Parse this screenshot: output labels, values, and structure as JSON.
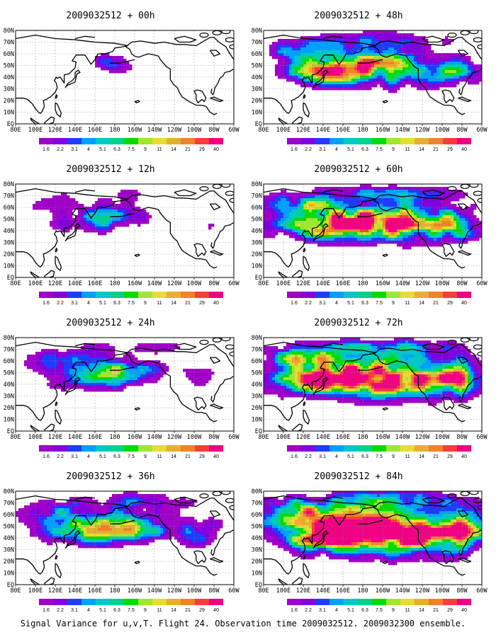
{
  "chart_data": {
    "type": "heatmap",
    "caption": "Signal Variance for u,v,T. Flight 24. Observation time 2009032512. 2009032300 ensemble.",
    "x_ticks": [
      "80E",
      "100E",
      "120E",
      "140E",
      "160E",
      "180",
      "160W",
      "140W",
      "120W",
      "100W",
      "80W",
      "60W"
    ],
    "y_ticks": [
      "EQ",
      "10N",
      "20N",
      "30N",
      "40N",
      "50N",
      "60N",
      "70N",
      "80N"
    ],
    "colorbar": {
      "levels": [
        "1.6",
        "2.2",
        "3.1",
        "4",
        "5.1",
        "6.3",
        "7.5",
        "9",
        "11",
        "14",
        "21",
        "29",
        "40"
      ],
      "colors": [
        "#a000c8",
        "#8200dc",
        "#1e3cff",
        "#00a0ff",
        "#00c8c8",
        "#00d28c",
        "#00dc00",
        "#a0e632",
        "#e6dc32",
        "#e6af2d",
        "#f08228",
        "#fa3c3c",
        "#f00082"
      ]
    },
    "panels": [
      {
        "title": "2009032512 + 00h",
        "lead_hours": 0
      },
      {
        "title": "2009032512 + 12h",
        "lead_hours": 12
      },
      {
        "title": "2009032512 + 24h",
        "lead_hours": 24
      },
      {
        "title": "2009032512 + 36h",
        "lead_hours": 36
      },
      {
        "title": "2009032512 + 48h",
        "lead_hours": 48
      },
      {
        "title": "2009032512 + 60h",
        "lead_hours": 60
      },
      {
        "title": "2009032512 + 72h",
        "lead_hours": 72
      },
      {
        "title": "2009032512 + 84h",
        "lead_hours": 84
      }
    ]
  }
}
